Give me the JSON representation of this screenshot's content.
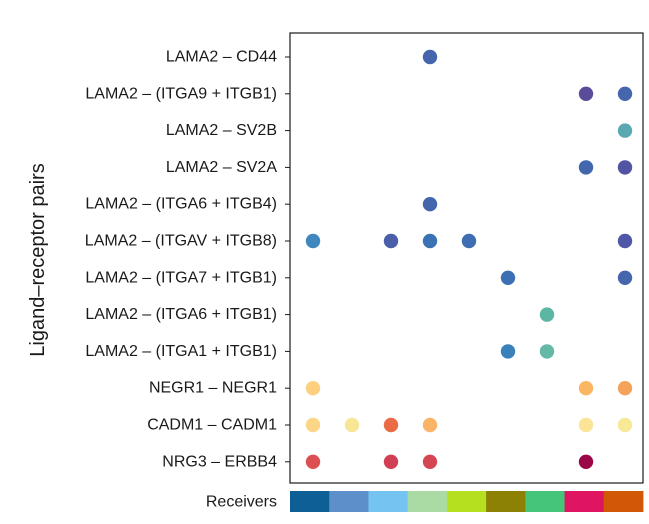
{
  "chart_data": {
    "type": "scatter",
    "subtype": "dot-plot",
    "ylabel": "Ligand–receptor pairs",
    "xlabel": "Receivers",
    "grid": false,
    "legend": "none",
    "pairs": [
      "LAMA2 – CD44",
      "LAMA2 – (ITGA9 + ITGB1)",
      "LAMA2 – SV2B",
      "LAMA2 – SV2A",
      "LAMA2 – (ITGA6 + ITGB4)",
      "LAMA2 – (ITGAV + ITGB8)",
      "LAMA2 – (ITGA7 + ITGB1)",
      "LAMA2 – (ITGA6 + ITGB1)",
      "LAMA2 – (ITGA1 + ITGB1)",
      "NEGR1 – NEGR1",
      "CADM1 – CADM1",
      "NRG3 – ERBB4"
    ],
    "receiver_colors": [
      "#0d5f95",
      "#5d8fcb",
      "#74c3f1",
      "#aadba5",
      "#b5e01f",
      "#8c8005",
      "#44c579",
      "#e01561",
      "#d15806"
    ],
    "points": [
      {
        "pair": 0,
        "receiver": 3,
        "color": "#4565ad"
      },
      {
        "pair": 1,
        "receiver": 7,
        "color": "#5a4b9b"
      },
      {
        "pair": 1,
        "receiver": 8,
        "color": "#4565ad"
      },
      {
        "pair": 2,
        "receiver": 8,
        "color": "#5aa9b2"
      },
      {
        "pair": 3,
        "receiver": 7,
        "color": "#4367ac"
      },
      {
        "pair": 3,
        "receiver": 8,
        "color": "#5253a3"
      },
      {
        "pair": 4,
        "receiver": 3,
        "color": "#4565ad"
      },
      {
        "pair": 5,
        "receiver": 0,
        "color": "#3f88bf"
      },
      {
        "pair": 5,
        "receiver": 2,
        "color": "#4a5ea9"
      },
      {
        "pair": 5,
        "receiver": 3,
        "color": "#3b72b4"
      },
      {
        "pair": 5,
        "receiver": 4,
        "color": "#3d6db2"
      },
      {
        "pair": 5,
        "receiver": 8,
        "color": "#4f58a6"
      },
      {
        "pair": 6,
        "receiver": 5,
        "color": "#3b70b3"
      },
      {
        "pair": 6,
        "receiver": 8,
        "color": "#4565ad"
      },
      {
        "pair": 7,
        "receiver": 6,
        "color": "#5db5a3"
      },
      {
        "pair": 8,
        "receiver": 5,
        "color": "#3a80bb"
      },
      {
        "pair": 8,
        "receiver": 6,
        "color": "#63b8a6"
      },
      {
        "pair": 9,
        "receiver": 0,
        "color": "#fdcf7f"
      },
      {
        "pair": 9,
        "receiver": 7,
        "color": "#fbb663"
      },
      {
        "pair": 9,
        "receiver": 8,
        "color": "#f5a25b"
      },
      {
        "pair": 10,
        "receiver": 0,
        "color": "#fdd587"
      },
      {
        "pair": 10,
        "receiver": 1,
        "color": "#f8e697"
      },
      {
        "pair": 10,
        "receiver": 2,
        "color": "#ec6b47"
      },
      {
        "pair": 10,
        "receiver": 3,
        "color": "#f9b468"
      },
      {
        "pair": 10,
        "receiver": 7,
        "color": "#fbe496"
      },
      {
        "pair": 10,
        "receiver": 8,
        "color": "#f7e997"
      },
      {
        "pair": 11,
        "receiver": 0,
        "color": "#dc5052"
      },
      {
        "pair": 11,
        "receiver": 2,
        "color": "#d03f54"
      },
      {
        "pair": 11,
        "receiver": 3,
        "color": "#d44752"
      },
      {
        "pair": 11,
        "receiver": 7,
        "color": "#9a0646"
      }
    ]
  }
}
